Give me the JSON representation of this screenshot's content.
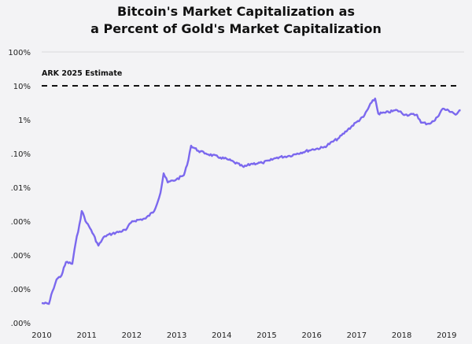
{
  "chart_data": {
    "type": "line",
    "title_line1": "Bitcoin's Market Capitalization as",
    "title_line2": "a Percent of Gold's Market Capitalization",
    "xlabel": "",
    "ylabel": "",
    "yscale": "log",
    "ylim": [
      1e-07,
      100
    ],
    "xlim": [
      2010,
      2019.35
    ],
    "x_ticks": [
      2010,
      2011,
      2012,
      2013,
      2014,
      2015,
      2016,
      2017,
      2018,
      2019
    ],
    "x_tick_labels": [
      "2010",
      "2011",
      "2012",
      "2013",
      "2014",
      "2015",
      "2016",
      "2017",
      "2018",
      "2019"
    ],
    "y_ticks": [
      100,
      10,
      1,
      0.1,
      0.01,
      0.001,
      0.0001,
      1e-05,
      1e-06
    ],
    "y_tick_labels": [
      "100%",
      "10%",
      "1%",
      ".10%",
      ".01%",
      ".00%",
      ".00%",
      ".00%",
      ".00%"
    ],
    "reference_line": {
      "value": 10,
      "label": "ARK 2025 Estimate",
      "style": "dashed",
      "color": "#111111"
    },
    "series": [
      {
        "name": "Bitcoin market cap as % of gold market cap",
        "color": "#7B68EE",
        "x": [
          2010.0,
          2010.16,
          2010.24,
          2010.33,
          2010.44,
          2010.54,
          2010.68,
          2010.75,
          2010.84,
          2010.89,
          2011.0,
          2011.1,
          2011.26,
          2011.4,
          2011.57,
          2011.87,
          2012.01,
          2012.31,
          2012.5,
          2012.64,
          2012.71,
          2012.8,
          2012.99,
          2013.16,
          2013.23,
          2013.32,
          2013.48,
          2013.65,
          2013.97,
          2014.16,
          2014.28,
          2014.49,
          2014.67,
          2014.9,
          2015.07,
          2015.23,
          2015.51,
          2015.68,
          2016.0,
          2016.26,
          2016.61,
          2016.8,
          2017.0,
          2017.15,
          2017.33,
          2017.41,
          2017.48,
          2017.64,
          2017.9,
          2018.08,
          2018.34,
          2018.43,
          2018.6,
          2018.74,
          2018.91,
          2019.12,
          2019.2,
          2019.31
        ],
        "values": [
          3.8e-06,
          3.6e-06,
          8.5e-06,
          1.9e-05,
          2.5e-05,
          6.2e-05,
          5.5e-05,
          0.00021,
          0.00081,
          0.002,
          0.00089,
          0.00055,
          0.00019,
          0.00036,
          0.00043,
          0.00055,
          0.001,
          0.0012,
          0.002,
          0.0069,
          0.026,
          0.014,
          0.017,
          0.023,
          0.045,
          0.17,
          0.12,
          0.1,
          0.076,
          0.065,
          0.055,
          0.04,
          0.05,
          0.053,
          0.062,
          0.076,
          0.085,
          0.1,
          0.13,
          0.15,
          0.29,
          0.5,
          0.85,
          1.2,
          3.2,
          4.2,
          1.5,
          1.6,
          1.9,
          1.4,
          1.4,
          0.81,
          0.76,
          0.95,
          2.1,
          1.7,
          1.4,
          1.9
        ]
      }
    ],
    "grid": false,
    "legend": "none"
  }
}
